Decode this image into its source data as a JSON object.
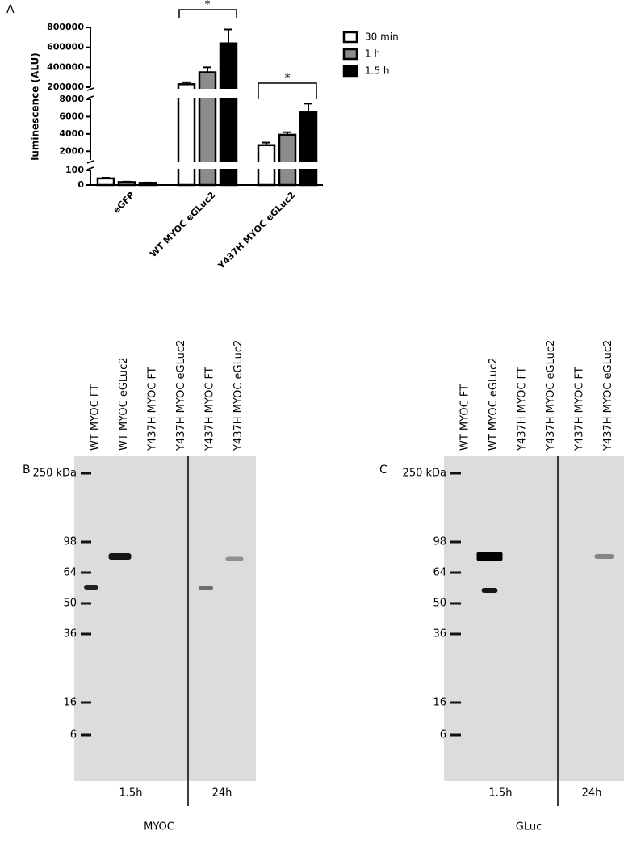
{
  "panels": [
    "A",
    "B",
    "C"
  ],
  "chart_data": {
    "type": "bar",
    "ylabel": "luminescence (ALU)",
    "categories": [
      "eGFP",
      "WT MYOC eGLuc2",
      "Y437H MYOC eGLuc2"
    ],
    "series": [
      {
        "name": "30 min",
        "color": "#ffffff",
        "values": [
          45,
          230000,
          2700
        ],
        "errors": [
          5,
          20000,
          300
        ]
      },
      {
        "name": "1 h",
        "color": "#8c8c8c",
        "values": [
          20,
          350000,
          3900
        ],
        "errors": [
          3,
          50000,
          300
        ]
      },
      {
        "name": "1.5 h",
        "color": "#000000",
        "values": [
          15,
          640000,
          6500
        ],
        "errors": [
          2,
          140000,
          1000
        ]
      }
    ],
    "y_segments": [
      {
        "ylim": [
          0,
          100
        ],
        "yticks": [
          0,
          100
        ]
      },
      {
        "ylim": [
          1000,
          8000
        ],
        "yticks": [
          2000,
          4000,
          6000,
          8000
        ]
      },
      {
        "ylim": [
          200000,
          800000
        ],
        "yticks": [
          200000,
          400000,
          600000,
          800000
        ]
      }
    ],
    "annotations": [
      "*",
      "*"
    ]
  },
  "blots": [
    {
      "lanes": [
        "WT MYOC FT",
        "WT MYOC eGLuc2",
        "Y437H MYOC FT",
        "Y437H MYOC eGLuc2",
        "Y437H MYOC FT",
        "Y437H MYOC eGLuc2"
      ],
      "markers": [
        "250 kDa",
        "98",
        "64",
        "50",
        "36",
        "16",
        "6"
      ],
      "groups": [
        "1.5h",
        "24h"
      ],
      "antibody": "MYOC"
    },
    {
      "lanes": [
        "WT MYOC FT",
        "WT MYOC eGLuc2",
        "Y437H MYOC FT",
        "Y437H MYOC eGLuc2",
        "Y437H MYOC FT",
        "Y437H MYOC eGLuc2"
      ],
      "markers": [
        "250 kDa",
        "98",
        "64",
        "50",
        "36",
        "16",
        "6"
      ],
      "groups": [
        "1.5h",
        "24h"
      ],
      "antibody": "GLuc"
    }
  ]
}
